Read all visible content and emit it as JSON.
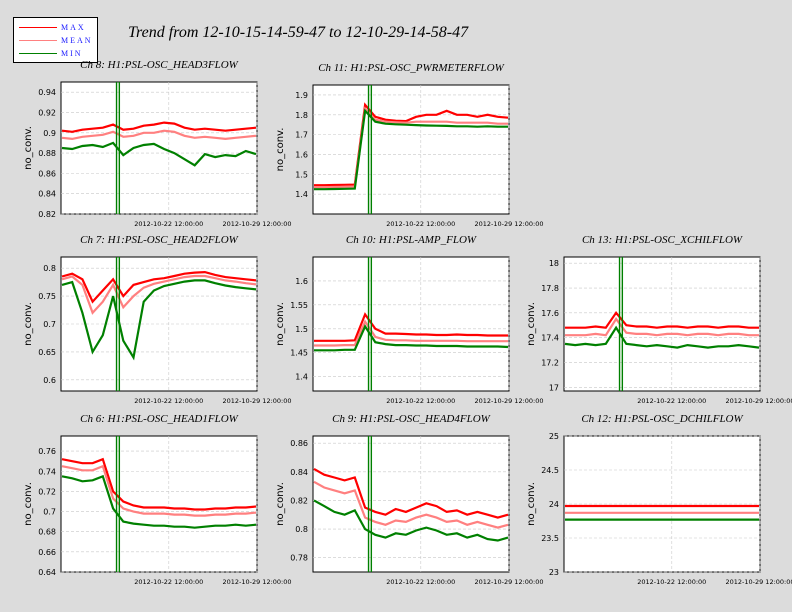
{
  "title": "Trend from 12-10-15-14-59-47 to 12-10-29-14-58-47",
  "legend": {
    "items": [
      {
        "label": "MAX",
        "color": "#ff0000"
      },
      {
        "label": "MEAN",
        "color": "#ff8080"
      },
      {
        "label": "MIN",
        "color": "#008000"
      }
    ]
  },
  "chart_data": [
    {
      "type": "line",
      "title": "Ch 8: H1:PSL-OSC_HEAD3FLOW",
      "ylabel": "no_conv.",
      "ylim": [
        0.82,
        0.95
      ],
      "yticks": [
        "0.82",
        "0.84",
        "0.86",
        "0.88",
        "0.9",
        "0.92",
        "0.94"
      ],
      "xticks": [
        "2012-10-22 12:00:00",
        "2012-10-29 12:00:00"
      ],
      "x_range": [
        "2012-10-15 14:59:47",
        "2012-10-29 14:58:47"
      ],
      "gap_at": "2012-10-18",
      "series": [
        {
          "name": "MAX",
          "color": "#ff0000",
          "values": [
            0.902,
            0.901,
            0.903,
            0.904,
            0.905,
            0.908,
            0.903,
            0.904,
            0.907,
            0.908,
            0.91,
            0.909,
            0.905,
            0.903,
            0.904,
            0.903,
            0.902,
            0.903,
            0.904,
            0.905
          ]
        },
        {
          "name": "MEAN",
          "color": "#ff8080",
          "values": [
            0.895,
            0.894,
            0.896,
            0.897,
            0.898,
            0.901,
            0.896,
            0.897,
            0.9,
            0.9,
            0.902,
            0.901,
            0.897,
            0.895,
            0.896,
            0.895,
            0.894,
            0.895,
            0.896,
            0.897
          ]
        },
        {
          "name": "MIN",
          "color": "#008000",
          "values": [
            0.885,
            0.884,
            0.887,
            0.888,
            0.886,
            0.89,
            0.878,
            0.885,
            0.888,
            0.889,
            0.884,
            0.88,
            0.874,
            0.868,
            0.879,
            0.876,
            0.878,
            0.877,
            0.882,
            0.879
          ]
        }
      ]
    },
    {
      "type": "line",
      "title": "Ch 11: H1:PSL-OSC_PWRMETERFLOW",
      "ylabel": "no_conv.",
      "ylim": [
        1.3,
        1.95
      ],
      "yticks": [
        "1.4",
        "1.5",
        "1.6",
        "1.7",
        "1.8",
        "1.9"
      ],
      "xticks": [
        "2012-10-22 12:00:00",
        "2012-10-29 12:00:00"
      ],
      "x_range": [
        "2012-10-15 14:59:47",
        "2012-10-29 14:58:47"
      ],
      "gap_at": "2012-10-18",
      "series": [
        {
          "name": "MAX",
          "color": "#ff0000",
          "values": [
            1.445,
            1.445,
            1.446,
            1.447,
            1.448,
            1.85,
            1.79,
            1.775,
            1.77,
            1.768,
            1.79,
            1.8,
            1.8,
            1.82,
            1.8,
            1.8,
            1.79,
            1.8,
            1.79,
            1.785
          ]
        },
        {
          "name": "MEAN",
          "color": "#ff8080",
          "values": [
            1.435,
            1.435,
            1.436,
            1.437,
            1.438,
            1.83,
            1.775,
            1.765,
            1.762,
            1.76,
            1.765,
            1.765,
            1.765,
            1.765,
            1.76,
            1.76,
            1.76,
            1.76,
            1.755,
            1.755
          ]
        },
        {
          "name": "MIN",
          "color": "#008000",
          "values": [
            1.425,
            1.425,
            1.426,
            1.427,
            1.428,
            1.82,
            1.765,
            1.755,
            1.752,
            1.75,
            1.748,
            1.746,
            1.745,
            1.744,
            1.742,
            1.742,
            1.74,
            1.742,
            1.74,
            1.74
          ]
        }
      ]
    },
    {
      "type": "line",
      "title": "Ch 7: H1:PSL-OSC_HEAD2FLOW",
      "ylabel": "no_conv.",
      "ylim": [
        0.58,
        0.82
      ],
      "yticks": [
        "0.6",
        "0.65",
        "0.7",
        "0.75",
        "0.8"
      ],
      "xticks": [
        "2012-10-22 12:00:00",
        "2012-10-29 12:00:00"
      ],
      "x_range": [
        "2012-10-15 14:59:47",
        "2012-10-29 14:58:47"
      ],
      "gap_at": "2012-10-18",
      "series": [
        {
          "name": "MAX",
          "color": "#ff0000",
          "values": [
            0.785,
            0.79,
            0.78,
            0.74,
            0.76,
            0.78,
            0.75,
            0.77,
            0.775,
            0.78,
            0.782,
            0.786,
            0.79,
            0.792,
            0.793,
            0.788,
            0.784,
            0.782,
            0.78,
            0.778
          ]
        },
        {
          "name": "MEAN",
          "color": "#ff8080",
          "values": [
            0.78,
            0.785,
            0.77,
            0.72,
            0.74,
            0.77,
            0.73,
            0.75,
            0.765,
            0.772,
            0.776,
            0.78,
            0.784,
            0.786,
            0.786,
            0.782,
            0.778,
            0.776,
            0.773,
            0.771
          ]
        },
        {
          "name": "MIN",
          "color": "#008000",
          "values": [
            0.77,
            0.775,
            0.72,
            0.65,
            0.68,
            0.75,
            0.67,
            0.64,
            0.74,
            0.76,
            0.768,
            0.772,
            0.776,
            0.778,
            0.778,
            0.773,
            0.769,
            0.766,
            0.764,
            0.762
          ]
        }
      ]
    },
    {
      "type": "line",
      "title": "Ch 10: H1:PSL-AMP_FLOW",
      "ylabel": "no_conv.",
      "ylim": [
        1.37,
        1.65
      ],
      "yticks": [
        "1.4",
        "1.45",
        "1.5",
        "1.55",
        "1.6"
      ],
      "xticks": [
        "2012-10-22 12:00:00",
        "2012-10-29 12:00:00"
      ],
      "x_range": [
        "2012-10-15 14:59:47",
        "2012-10-29 14:58:47"
      ],
      "gap_at": "2012-10-18",
      "series": [
        {
          "name": "MAX",
          "color": "#ff0000",
          "values": [
            1.475,
            1.475,
            1.475,
            1.475,
            1.476,
            1.53,
            1.5,
            1.49,
            1.49,
            1.489,
            1.488,
            1.488,
            1.487,
            1.487,
            1.488,
            1.487,
            1.487,
            1.486,
            1.486,
            1.486
          ]
        },
        {
          "name": "MEAN",
          "color": "#ff8080",
          "values": [
            1.465,
            1.465,
            1.465,
            1.466,
            1.466,
            1.515,
            1.483,
            1.477,
            1.476,
            1.476,
            1.475,
            1.475,
            1.475,
            1.475,
            1.475,
            1.474,
            1.474,
            1.474,
            1.474,
            1.474
          ]
        },
        {
          "name": "MIN",
          "color": "#008000",
          "values": [
            1.455,
            1.455,
            1.455,
            1.456,
            1.456,
            1.505,
            1.472,
            1.468,
            1.466,
            1.466,
            1.465,
            1.465,
            1.464,
            1.464,
            1.464,
            1.463,
            1.463,
            1.463,
            1.463,
            1.462
          ]
        }
      ]
    },
    {
      "type": "line",
      "title": "Ch 13: H1:PSL-OSC_XCHILFLOW",
      "ylabel": "no_conv.",
      "ylim": [
        16.97,
        18.05
      ],
      "yticks": [
        "17",
        "17.2",
        "17.4",
        "17.6",
        "17.8",
        "18"
      ],
      "xticks": [
        "2012-10-22 12:00:00",
        "2012-10-29 12:00:00"
      ],
      "x_range": [
        "2012-10-15 14:59:47",
        "2012-10-29 14:58:47"
      ],
      "gap_at": "2012-10-18",
      "series": [
        {
          "name": "MAX",
          "color": "#ff0000",
          "values": [
            17.48,
            17.48,
            17.48,
            17.49,
            17.48,
            17.6,
            17.5,
            17.49,
            17.49,
            17.48,
            17.49,
            17.49,
            17.48,
            17.49,
            17.49,
            17.48,
            17.49,
            17.49,
            17.48,
            17.48
          ]
        },
        {
          "name": "MEAN",
          "color": "#ff8080",
          "values": [
            17.42,
            17.42,
            17.42,
            17.43,
            17.42,
            17.55,
            17.44,
            17.43,
            17.43,
            17.42,
            17.43,
            17.43,
            17.42,
            17.43,
            17.43,
            17.42,
            17.43,
            17.43,
            17.42,
            17.42
          ]
        },
        {
          "name": "MIN",
          "color": "#008000",
          "values": [
            17.35,
            17.34,
            17.35,
            17.34,
            17.35,
            17.48,
            17.35,
            17.34,
            17.33,
            17.34,
            17.33,
            17.32,
            17.34,
            17.33,
            17.32,
            17.33,
            17.33,
            17.34,
            17.33,
            17.32
          ]
        }
      ]
    },
    {
      "type": "line",
      "title": "Ch 6: H1:PSL-OSC_HEAD1FLOW",
      "ylabel": "no_conv.",
      "ylim": [
        0.64,
        0.775
      ],
      "yticks": [
        "0.64",
        "0.66",
        "0.68",
        "0.7",
        "0.72",
        "0.74",
        "0.76"
      ],
      "xticks": [
        "2012-10-22 12:00:00",
        "2012-10-29 12:00:00"
      ],
      "x_range": [
        "2012-10-15 14:59:47",
        "2012-10-29 14:58:47"
      ],
      "gap_at": "2012-10-18",
      "series": [
        {
          "name": "MAX",
          "color": "#ff0000",
          "values": [
            0.752,
            0.75,
            0.748,
            0.748,
            0.752,
            0.72,
            0.71,
            0.706,
            0.704,
            0.704,
            0.704,
            0.703,
            0.703,
            0.702,
            0.702,
            0.703,
            0.703,
            0.704,
            0.704,
            0.705
          ]
        },
        {
          "name": "MEAN",
          "color": "#ff8080",
          "values": [
            0.745,
            0.743,
            0.741,
            0.741,
            0.745,
            0.713,
            0.703,
            0.7,
            0.698,
            0.698,
            0.698,
            0.697,
            0.697,
            0.696,
            0.696,
            0.697,
            0.697,
            0.698,
            0.698,
            0.699
          ]
        },
        {
          "name": "MIN",
          "color": "#008000",
          "values": [
            0.735,
            0.733,
            0.73,
            0.731,
            0.735,
            0.703,
            0.69,
            0.688,
            0.687,
            0.686,
            0.686,
            0.685,
            0.685,
            0.684,
            0.685,
            0.686,
            0.686,
            0.687,
            0.686,
            0.687
          ]
        }
      ]
    },
    {
      "type": "line",
      "title": "Ch 9: H1:PSL-OSC_HEAD4FLOW",
      "ylabel": "no_conv.",
      "ylim": [
        0.77,
        0.865
      ],
      "yticks": [
        "0.78",
        "0.8",
        "0.82",
        "0.84",
        "0.86"
      ],
      "xticks": [
        "2012-10-22 12:00:00",
        "2012-10-29 12:00:00"
      ],
      "x_range": [
        "2012-10-15 14:59:47",
        "2012-10-29 14:58:47"
      ],
      "gap_at": "2012-10-18",
      "series": [
        {
          "name": "MAX",
          "color": "#ff0000",
          "values": [
            0.842,
            0.838,
            0.836,
            0.834,
            0.836,
            0.815,
            0.812,
            0.81,
            0.814,
            0.812,
            0.815,
            0.818,
            0.816,
            0.812,
            0.813,
            0.81,
            0.812,
            0.81,
            0.808,
            0.81
          ]
        },
        {
          "name": "MEAN",
          "color": "#ff8080",
          "values": [
            0.833,
            0.829,
            0.827,
            0.825,
            0.827,
            0.808,
            0.805,
            0.803,
            0.806,
            0.805,
            0.808,
            0.81,
            0.808,
            0.805,
            0.806,
            0.803,
            0.805,
            0.803,
            0.801,
            0.803
          ]
        },
        {
          "name": "MIN",
          "color": "#008000",
          "values": [
            0.82,
            0.816,
            0.812,
            0.81,
            0.813,
            0.8,
            0.796,
            0.794,
            0.797,
            0.796,
            0.799,
            0.801,
            0.799,
            0.796,
            0.797,
            0.794,
            0.796,
            0.793,
            0.792,
            0.794
          ]
        }
      ]
    },
    {
      "type": "line",
      "title": "Ch 12: H1:PSL-OSC_DCHILFLOW",
      "ylabel": "no_conv.",
      "ylim": [
        23.0,
        25.0
      ],
      "yticks": [
        "23",
        "23.5",
        "24",
        "24.5",
        "25"
      ],
      "xticks": [
        "2012-10-22 12:00:00",
        "2012-10-29 12:00:00"
      ],
      "x_range": [
        "2012-10-15 14:59:47",
        "2012-10-29 14:58:47"
      ],
      "gap_at": "",
      "series": [
        {
          "name": "MAX",
          "color": "#ff0000",
          "values": [
            23.97,
            23.97,
            23.97,
            23.97,
            23.97,
            23.97,
            23.97,
            23.97,
            23.97,
            23.97,
            23.97,
            23.97,
            23.97,
            23.97,
            23.97,
            23.97,
            23.97,
            23.97,
            23.97,
            23.97
          ]
        },
        {
          "name": "MEAN",
          "color": "#ff8080",
          "values": [
            23.87,
            23.87,
            23.87,
            23.87,
            23.87,
            23.87,
            23.87,
            23.87,
            23.87,
            23.87,
            23.87,
            23.87,
            23.87,
            23.87,
            23.87,
            23.87,
            23.87,
            23.87,
            23.87,
            23.87
          ]
        },
        {
          "name": "MIN",
          "color": "#008000",
          "values": [
            23.77,
            23.77,
            23.77,
            23.77,
            23.77,
            23.77,
            23.77,
            23.77,
            23.77,
            23.77,
            23.77,
            23.77,
            23.77,
            23.77,
            23.77,
            23.77,
            23.77,
            23.77,
            23.77,
            23.77
          ]
        }
      ]
    }
  ]
}
